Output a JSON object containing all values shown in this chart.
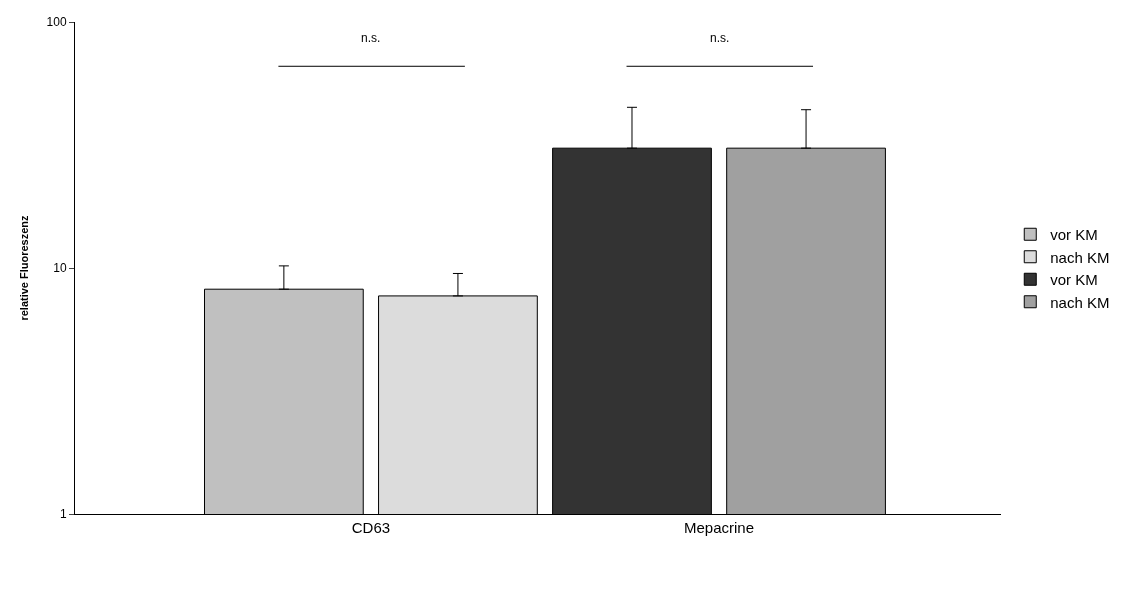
{
  "chart_data": {
    "type": "bar",
    "ylabel": "relative Fluoreszenz",
    "categories": [
      "CD63",
      "Mepacrine"
    ],
    "series": [
      {
        "name": "vor KM",
        "color": "#c0c0c0",
        "values": [
          8.2,
          null
        ],
        "errors": [
          [
            8.2,
            10.2
          ],
          null
        ]
      },
      {
        "name": "nach KM",
        "color": "#dcdcdc",
        "values": [
          7.7,
          null
        ],
        "errors": [
          [
            7.7,
            9.5
          ],
          null
        ]
      },
      {
        "name": "vor KM",
        "color": "#333333",
        "values": [
          null,
          30.7
        ],
        "errors": [
          null,
          [
            30.7,
            45
          ]
        ]
      },
      {
        "name": "nach KM",
        "color": "#a0a0a0",
        "values": [
          null,
          30.7
        ],
        "errors": [
          null,
          [
            30.7,
            44
          ]
        ]
      }
    ],
    "log": "y",
    "ylim": [
      1,
      100
    ],
    "yticks": [
      1,
      10,
      100
    ],
    "grid": false,
    "legend": "right",
    "annotations": [
      "n.s.",
      "n.s."
    ]
  }
}
